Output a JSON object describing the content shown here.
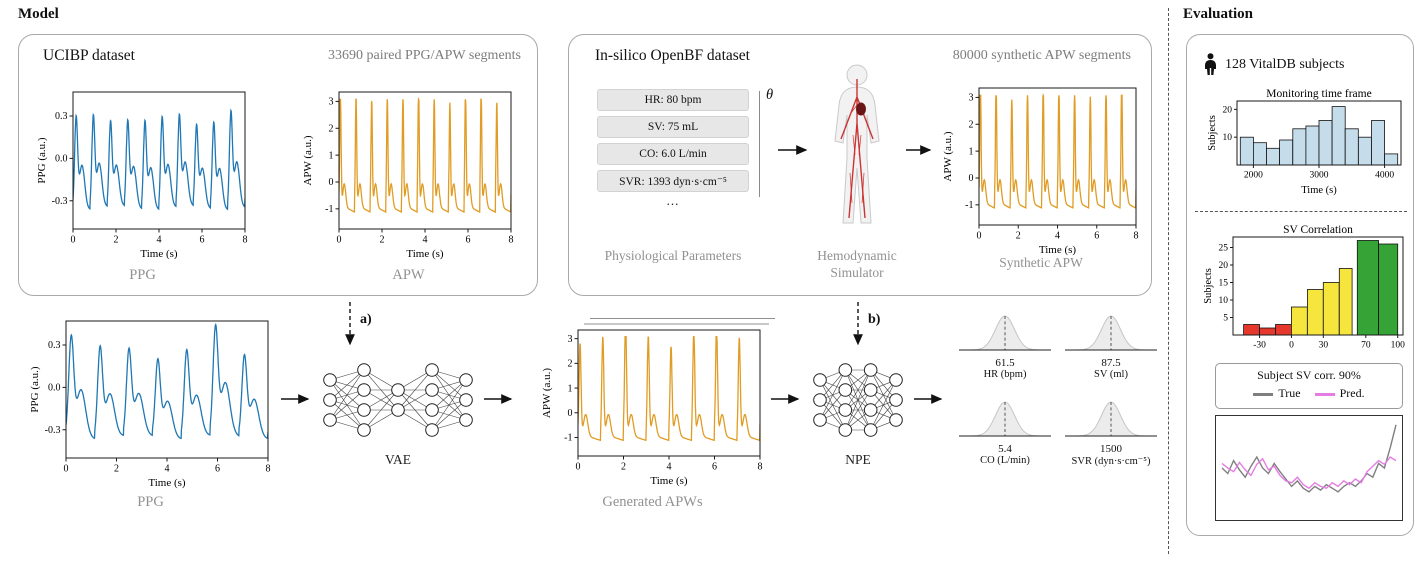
{
  "headers": {
    "model": "Model",
    "evaluation": "Evaluation"
  },
  "colors": {
    "ppg": "#1f77b4",
    "apw": "#e09c24",
    "monitoring_bar": "#c5dcea",
    "corr_red": "#e5372b",
    "corr_yellow": "#f5e53d",
    "corr_green": "#36a336",
    "true_line": "#7f7f7f",
    "pred_line": "#e47ce4"
  },
  "ucibp": {
    "title": "UCIBP dataset",
    "subtitle": "33690 paired PPG/APW segments",
    "ppg_caption": "PPG",
    "apw_caption": "APW"
  },
  "openbf": {
    "title": "In-silico OpenBF dataset",
    "subtitle": "80000 synthetic APW segments",
    "theta": "θ",
    "params": [
      "HR: 80 bpm",
      "SV: 75 mL",
      "CO: 6.0 L/min",
      "SVR: 1393 dyn·s·cm⁻⁵"
    ],
    "ellipsis": "...",
    "caption_params": "Physiological Parameters",
    "caption_simulator": "Hemodynamic Simulator",
    "caption_apw": "Synthetic APW"
  },
  "pipeline": {
    "ppg_caption": "PPG",
    "generated_caption": "Generated APWs",
    "vae_label": "VAE",
    "npe_label": "NPE",
    "a_label": "a)",
    "b_label": "b)",
    "posteriors": [
      {
        "value": "61.5",
        "label": "HR (bpm)"
      },
      {
        "value": "87.5",
        "label": "SV (ml)"
      },
      {
        "value": "5.4",
        "label": "CO (L/min)"
      },
      {
        "value": "1500",
        "label": "SVR (dyn·s·cm⁻⁵)"
      }
    ]
  },
  "evaluation": {
    "subjects_label": "128 VitalDB subjects",
    "legend": {
      "title": "Subject SV corr. 90%",
      "true_label": "True",
      "pred_label": "Pred."
    }
  },
  "networks": {
    "vae": {
      "columns": [
        3,
        4,
        2,
        4,
        3
      ]
    },
    "npe": {
      "columns": [
        3,
        4,
        4,
        3
      ]
    }
  },
  "chart_data": [
    {
      "id": "ppg_ucibp",
      "type": "line",
      "signal": "ppg",
      "beats": 10,
      "seed": 1.3,
      "jitter": 0.07,
      "xlim": [
        0,
        8
      ],
      "ylim": [
        -0.5,
        0.47
      ],
      "xticks": [
        0,
        2,
        4,
        6,
        8
      ],
      "yticks": [
        0.3,
        0,
        -0.3
      ],
      "ytick_labels": [
        "0.3",
        "0.0",
        "-0.3"
      ],
      "xlabel": "Time (s)",
      "ylabel": "PPG (a.u.)",
      "color": "#1f77b4"
    },
    {
      "id": "apw_ucibp",
      "type": "line",
      "signal": "apw",
      "beats": 11,
      "seed": 2.1,
      "jitter": 0.05,
      "xlim": [
        0,
        8
      ],
      "ylim": [
        -1.75,
        3.35
      ],
      "xticks": [
        0,
        2,
        4,
        6,
        8
      ],
      "yticks": [
        3,
        2,
        1,
        0,
        -1
      ],
      "ytick_labels": [
        "3",
        "2",
        "1",
        "0",
        "-1"
      ],
      "xlabel": "Time (s)",
      "ylabel": "APW (a.u.)",
      "color": "#e09c24"
    },
    {
      "id": "apw_synth",
      "type": "line",
      "signal": "apw",
      "beats": 10,
      "seed": 7.4,
      "jitter": 0.06,
      "xlim": [
        0,
        8
      ],
      "ylim": [
        -1.75,
        3.35
      ],
      "xticks": [
        0,
        2,
        4,
        6,
        8
      ],
      "yticks": [
        3,
        2,
        1,
        0,
        -1
      ],
      "ytick_labels": [
        "3",
        "2",
        "1",
        "0",
        "-1"
      ],
      "xlabel": "Time (s)",
      "ylabel": "APW (a.u.)",
      "color": "#e09c24"
    },
    {
      "id": "ppg_input",
      "type": "line",
      "signal": "ppg",
      "beats": 7,
      "seed": 9.2,
      "jitter": 0.18,
      "xlim": [
        0,
        8
      ],
      "ylim": [
        -0.5,
        0.47
      ],
      "xticks": [
        0,
        2,
        4,
        6,
        8
      ],
      "yticks": [
        0.3,
        0,
        -0.3
      ],
      "ytick_labels": [
        "0.3",
        "0.0",
        "-0.3"
      ],
      "xlabel": "Time (s)",
      "ylabel": "PPG (a.u.)",
      "color": "#1f77b4"
    },
    {
      "id": "apw_generated",
      "type": "line",
      "signal": "apw",
      "beats": 8,
      "seed": 3.3,
      "jitter": 0.09,
      "stacked": true,
      "xlim": [
        0,
        8
      ],
      "ylim": [
        -1.75,
        3.35
      ],
      "xticks": [
        0,
        2,
        4,
        6,
        8
      ],
      "yticks": [
        3,
        2,
        1,
        0,
        -1
      ],
      "ytick_labels": [
        "3",
        "2",
        "1",
        "0",
        "-1"
      ],
      "xlabel": "Time (s)",
      "ylabel": "APW (a.u.)",
      "color": "#e09c24"
    },
    {
      "id": "hist_monitoring",
      "type": "bar",
      "title": "Monitoring time frame",
      "xlabel": "Time (s)",
      "ylabel": "Subjects",
      "xlim": [
        1750,
        4250
      ],
      "ylim": [
        0,
        23
      ],
      "xticks": [
        2000,
        3000,
        4000
      ],
      "yticks": [
        10,
        20
      ],
      "color": "#c5dcea",
      "bars": [
        [
          1800,
          2000,
          10
        ],
        [
          2000,
          2200,
          8
        ],
        [
          2200,
          2400,
          6
        ],
        [
          2400,
          2600,
          9
        ],
        [
          2600,
          2800,
          13
        ],
        [
          2800,
          3000,
          14
        ],
        [
          3000,
          3200,
          16
        ],
        [
          3200,
          3400,
          21
        ],
        [
          3400,
          3600,
          13
        ],
        [
          3600,
          3800,
          10
        ],
        [
          3800,
          4000,
          16
        ],
        [
          4000,
          4200,
          4
        ]
      ]
    },
    {
      "id": "hist_svcorr",
      "type": "bar",
      "title": "SV Correlation",
      "ylabel": "Subjects",
      "xlim": [
        -55,
        105
      ],
      "ylim": [
        0,
        28
      ],
      "xticks": [
        -30,
        0,
        30,
        70,
        100
      ],
      "yticks": [
        5,
        10,
        15,
        20,
        25
      ],
      "color": "#f5e53d",
      "bars": [
        [
          -45,
          -30,
          3,
          "#e5372b"
        ],
        [
          -30,
          -15,
          2,
          "#e5372b"
        ],
        [
          -15,
          0,
          3,
          "#e5372b"
        ],
        [
          0,
          15,
          8,
          "#f5e53d"
        ],
        [
          15,
          30,
          13,
          "#f5e53d"
        ],
        [
          30,
          45,
          15,
          "#f5e53d"
        ],
        [
          45,
          57,
          19,
          "#f5e53d"
        ],
        [
          62,
          82,
          27,
          "#36a336"
        ],
        [
          82,
          100,
          26,
          "#36a336"
        ]
      ]
    },
    {
      "id": "subject_traces",
      "type": "line-multi",
      "series": [
        {
          "name": "True",
          "color": "#7f7f7f",
          "y": [
            0.5,
            0.44,
            0.58,
            0.48,
            0.4,
            0.52,
            0.62,
            0.5,
            0.44,
            0.55,
            0.46,
            0.38,
            0.3,
            0.36,
            0.28,
            0.24,
            0.3,
            0.26,
            0.32,
            0.28,
            0.24,
            0.3,
            0.34,
            0.3,
            0.36,
            0.44,
            0.4,
            0.55,
            0.5,
            0.72,
            0.97
          ]
        },
        {
          "name": "Pred.",
          "color": "#e47ce4",
          "y": [
            0.55,
            0.5,
            0.46,
            0.56,
            0.48,
            0.42,
            0.54,
            0.6,
            0.48,
            0.52,
            0.42,
            0.36,
            0.34,
            0.4,
            0.32,
            0.28,
            0.34,
            0.3,
            0.28,
            0.34,
            0.3,
            0.36,
            0.32,
            0.38,
            0.34,
            0.46,
            0.52,
            0.58,
            0.54,
            0.62,
            0.58
          ]
        }
      ]
    }
  ]
}
